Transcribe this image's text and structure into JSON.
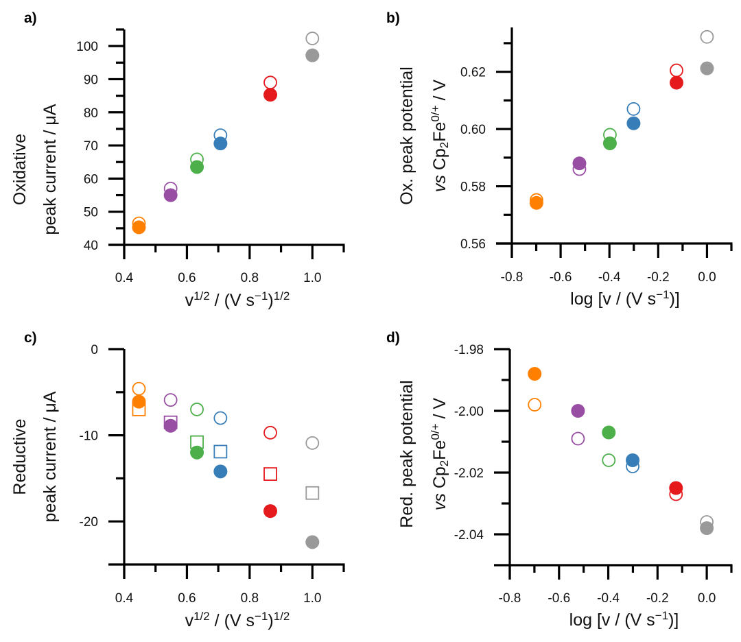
{
  "chart_data": [
    {
      "id": "a",
      "panel_label": "a)",
      "type": "scatter",
      "xlabel": "v^1/2 / (V s^-1)^1/2",
      "xlabel_parts": [
        {
          "t": "v"
        },
        {
          "t": "1/2",
          "sup": true
        },
        {
          "t": " / (V s"
        },
        {
          "t": "−1",
          "sup": true
        },
        {
          "t": ")"
        },
        {
          "t": "1/2",
          "sup": true
        }
      ],
      "ylabel_lines": [
        [
          {
            "t": "Oxidative"
          }
        ],
        [
          {
            "t": "peak current / μA"
          }
        ]
      ],
      "xlim": [
        0.4,
        1.1
      ],
      "ylim": [
        40,
        105
      ],
      "xticks": [
        0.4,
        0.6,
        0.8,
        1.0
      ],
      "xtick_labels": [
        "0.4",
        "0.6",
        "0.8",
        "1.0"
      ],
      "xminor": [
        0.5,
        0.7,
        0.9,
        1.1
      ],
      "yticks": [
        40,
        50,
        60,
        70,
        80,
        90,
        100
      ],
      "ytick_labels": [
        "40",
        "50",
        "60",
        "70",
        "80",
        "90",
        "100"
      ],
      "yminor": [
        45,
        55,
        65,
        75,
        85,
        95,
        105
      ],
      "grid": false,
      "x": [
        0.447,
        0.548,
        0.632,
        0.707,
        0.866,
        1.0
      ],
      "series": [
        {
          "name": "open circles",
          "marker": "circle-open",
          "values": [
            46.5,
            57.0,
            65.8,
            73.1,
            89.0,
            102.3
          ]
        },
        {
          "name": "filled circles",
          "marker": "circle-filled",
          "values": [
            45.3,
            55.0,
            63.5,
            70.6,
            85.3,
            97.2
          ]
        }
      ]
    },
    {
      "id": "b",
      "panel_label": "b)",
      "type": "scatter",
      "xlabel": "log [v / (V s^-1)]",
      "xlabel_parts": [
        {
          "t": "log [v / (V s"
        },
        {
          "t": "−1",
          "sup": true
        },
        {
          "t": ")]"
        }
      ],
      "ylabel_lines": [
        [
          {
            "t": "Ox. peak potential"
          }
        ],
        [
          {
            "t": "vs",
            "italic": true
          },
          {
            "t": " Cp"
          },
          {
            "t": "2",
            "sub": true
          },
          {
            "t": "Fe"
          },
          {
            "t": "0/+",
            "sup": true
          },
          {
            "t": " / V"
          }
        ]
      ],
      "xlim": [
        -0.8,
        0.1
      ],
      "ylim": [
        0.56,
        0.6355
      ],
      "xticks": [
        -0.8,
        -0.6,
        -0.4,
        -0.2,
        0.0
      ],
      "xtick_labels": [
        "-0.8",
        "-0.6",
        "-0.4",
        "-0.2",
        "0.0"
      ],
      "xminor": [
        -0.7,
        -0.5,
        -0.3,
        -0.1,
        0.1
      ],
      "yticks": [
        0.56,
        0.58,
        0.6,
        0.62
      ],
      "ytick_labels": [
        "0.56",
        "0.58",
        "0.60",
        "0.62"
      ],
      "yminor": [
        0.57,
        0.59,
        0.61,
        0.63
      ],
      "grid": false,
      "x": [
        -0.699,
        -0.523,
        -0.398,
        -0.301,
        -0.125,
        0.0
      ],
      "series": [
        {
          "name": "open circles",
          "marker": "circle-open",
          "values": [
            0.5752,
            0.586,
            0.598,
            0.607,
            0.6205,
            0.6322
          ]
        },
        {
          "name": "filled circles",
          "marker": "circle-filled",
          "values": [
            0.5742,
            0.588,
            0.595,
            0.602,
            0.6162,
            0.6212
          ]
        }
      ]
    },
    {
      "id": "c",
      "panel_label": "c)",
      "type": "scatter",
      "xlabel": "v^1/2 / (V s^-1)^1/2",
      "xlabel_parts": [
        {
          "t": "v"
        },
        {
          "t": "1/2",
          "sup": true
        },
        {
          "t": " / (V s"
        },
        {
          "t": "−1",
          "sup": true
        },
        {
          "t": ")"
        },
        {
          "t": "1/2",
          "sup": true
        }
      ],
      "ylabel_lines": [
        [
          {
            "t": "Reductive"
          }
        ],
        [
          {
            "t": "peak current / μA"
          }
        ]
      ],
      "xlim": [
        0.4,
        1.1
      ],
      "ylim": [
        -25,
        0
      ],
      "xticks": [
        0.4,
        0.6,
        0.8,
        1.0
      ],
      "xtick_labels": [
        "0.4",
        "0.6",
        "0.8",
        "1.0"
      ],
      "xminor": [
        0.5,
        0.7,
        0.9,
        1.1
      ],
      "yticks": [
        -20,
        -10,
        0
      ],
      "ytick_labels": [
        "-20",
        "-10",
        "0"
      ],
      "yminor": [
        -15,
        -5
      ],
      "grid": false,
      "x": [
        0.447,
        0.548,
        0.632,
        0.707,
        0.866,
        1.0
      ],
      "series": [
        {
          "name": "open circles",
          "marker": "circle-open",
          "values": [
            -4.6,
            -5.9,
            -7.0,
            -8.0,
            -9.7,
            -10.9
          ]
        },
        {
          "name": "open squares",
          "marker": "square-open",
          "values": [
            -7.0,
            -8.5,
            -10.8,
            -11.9,
            -14.5,
            -16.7
          ]
        },
        {
          "name": "filled circles",
          "marker": "circle-filled",
          "values": [
            -6.1,
            -8.9,
            -12.0,
            -14.2,
            -18.8,
            -22.4
          ]
        }
      ]
    },
    {
      "id": "d",
      "panel_label": "d)",
      "type": "scatter",
      "xlabel": "log [v / (V s^-1)]",
      "xlabel_parts": [
        {
          "t": "log [v / (V s"
        },
        {
          "t": "−1",
          "sup": true
        },
        {
          "t": ")]"
        }
      ],
      "ylabel_lines": [
        [
          {
            "t": "Red. peak potential"
          }
        ],
        [
          {
            "t": "vs",
            "italic": true
          },
          {
            "t": " Cp"
          },
          {
            "t": "2",
            "sub": true
          },
          {
            "t": "Fe"
          },
          {
            "t": "0/+",
            "sup": true
          },
          {
            "t": " / V"
          }
        ]
      ],
      "xlim": [
        -0.8,
        0.1
      ],
      "ylim": [
        -2.05,
        -1.98
      ],
      "xticks": [
        -0.8,
        -0.6,
        -0.4,
        -0.2,
        0.0
      ],
      "xtick_labels": [
        "-0.8",
        "-0.6",
        "-0.4",
        "-0.2",
        "0.0"
      ],
      "xminor": [
        -0.7,
        -0.5,
        -0.3,
        -0.1,
        0.1
      ],
      "yticks": [
        -2.04,
        -2.02,
        -2.0,
        -1.98
      ],
      "ytick_labels": [
        "-2.04",
        "-2.02",
        "-2.00",
        "-1.98"
      ],
      "yminor": [
        -2.03,
        -2.01,
        -1.99
      ],
      "grid": false,
      "x": [
        -0.699,
        -0.523,
        -0.398,
        -0.301,
        -0.125,
        0.0
      ],
      "series": [
        {
          "name": "open circles",
          "marker": "circle-open",
          "values": [
            -1.998,
            -2.009,
            -2.016,
            -2.018,
            -2.027,
            -2.036
          ]
        },
        {
          "name": "filled circles",
          "marker": "circle-filled",
          "values": [
            -1.988,
            -2.0,
            -2.007,
            -2.016,
            -2.025,
            -2.038
          ]
        }
      ]
    }
  ],
  "point_colors": [
    "#FF7F00",
    "#984EA3",
    "#4DAF4A",
    "#377EB8",
    "#E41A1C",
    "#999999"
  ],
  "legend": null
}
